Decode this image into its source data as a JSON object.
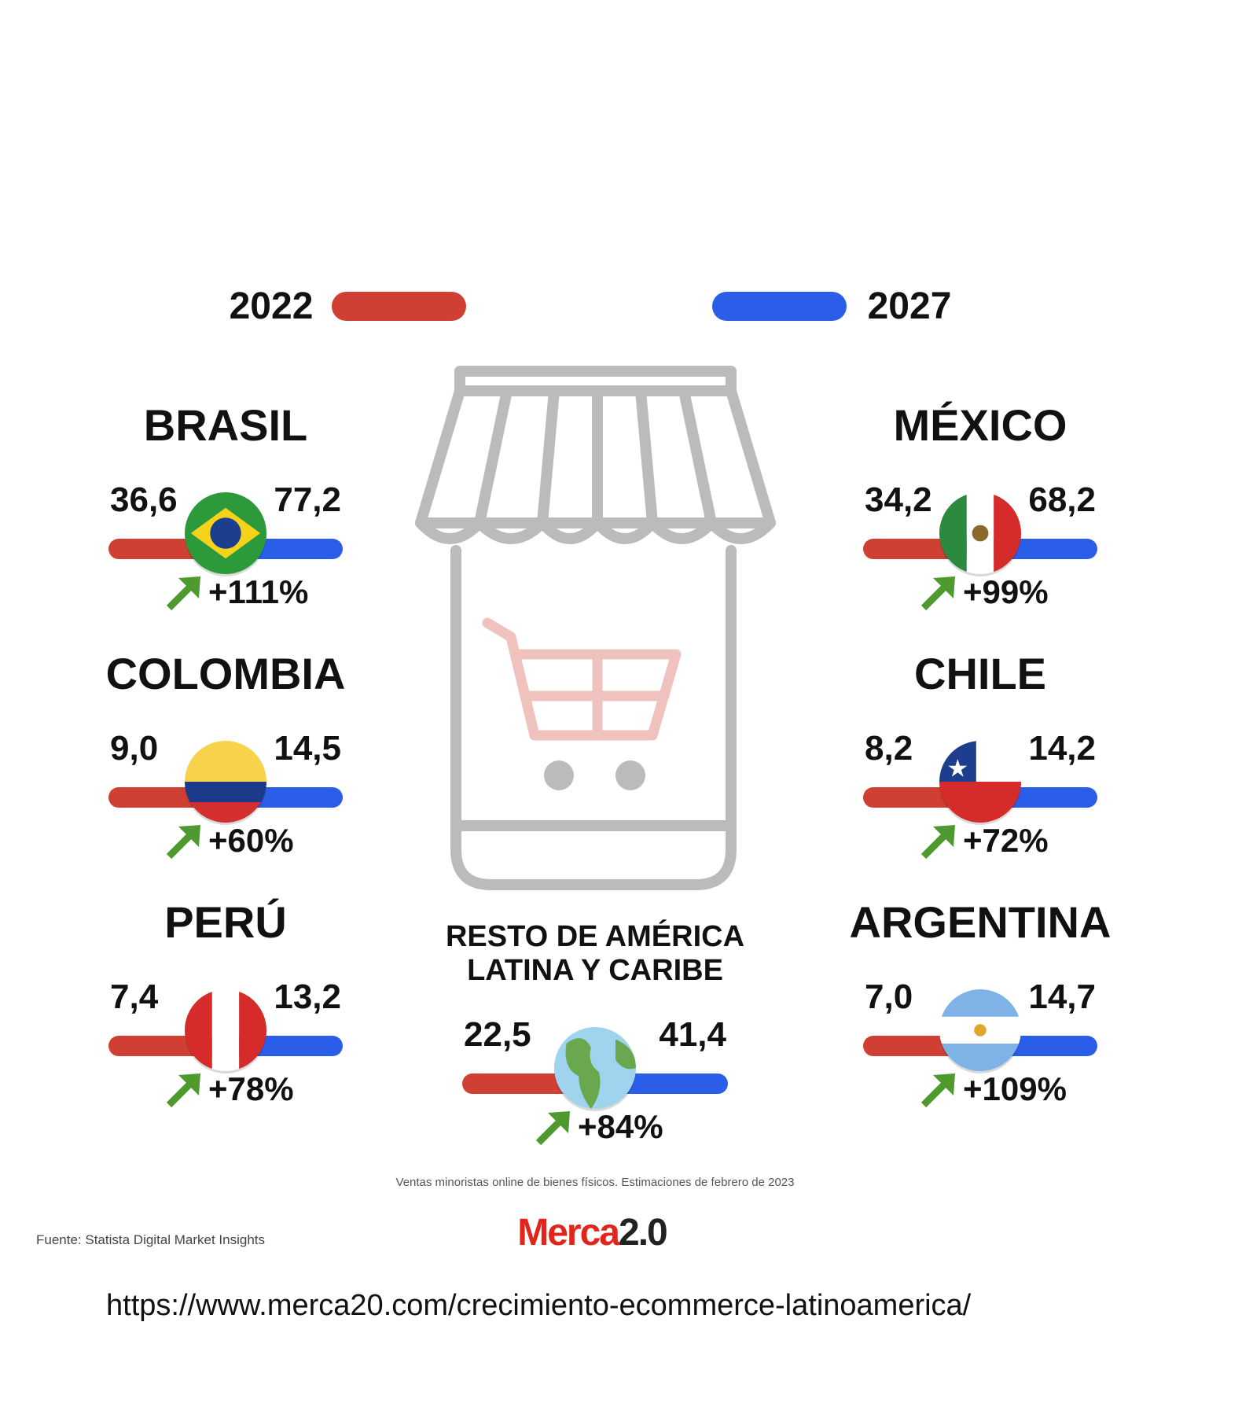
{
  "legend": {
    "start_year": "2022",
    "end_year": "2027"
  },
  "countries": [
    {
      "name": "BRASIL",
      "value_2022": "36,6",
      "value_2027": "77,2",
      "change": "+111%"
    },
    {
      "name": "COLOMBIA",
      "value_2022": "9,0",
      "value_2027": "14,5",
      "change": "+60%"
    },
    {
      "name": "PERÚ",
      "value_2022": "7,4",
      "value_2027": "13,2",
      "change": "+78%"
    },
    {
      "name": "MÉXICO",
      "value_2022": "34,2",
      "value_2027": "68,2",
      "change": "+99%"
    },
    {
      "name": "CHILE",
      "value_2022": "8,2",
      "value_2027": "14,2",
      "change": "+72%"
    },
    {
      "name": "ARGENTINA",
      "value_2022": "7,0",
      "value_2027": "14,7",
      "change": "+109%"
    }
  ],
  "rest": {
    "name_line1": "RESTO DE AMÉRICA",
    "name_line2": "LATINA Y CARIBE",
    "value_2022": "22,5",
    "value_2027": "41,4",
    "change": "+84%"
  },
  "footnote": "Ventas minoristas online de bienes físicos. Estimaciones de febrero de 2023",
  "source": "Fuente: Statista Digital Market Insights",
  "logo": {
    "part1": "Merca",
    "part2": "2.0"
  },
  "url": "https://www.merca20.com/crecimiento-ecommerce-latinoamerica/"
}
